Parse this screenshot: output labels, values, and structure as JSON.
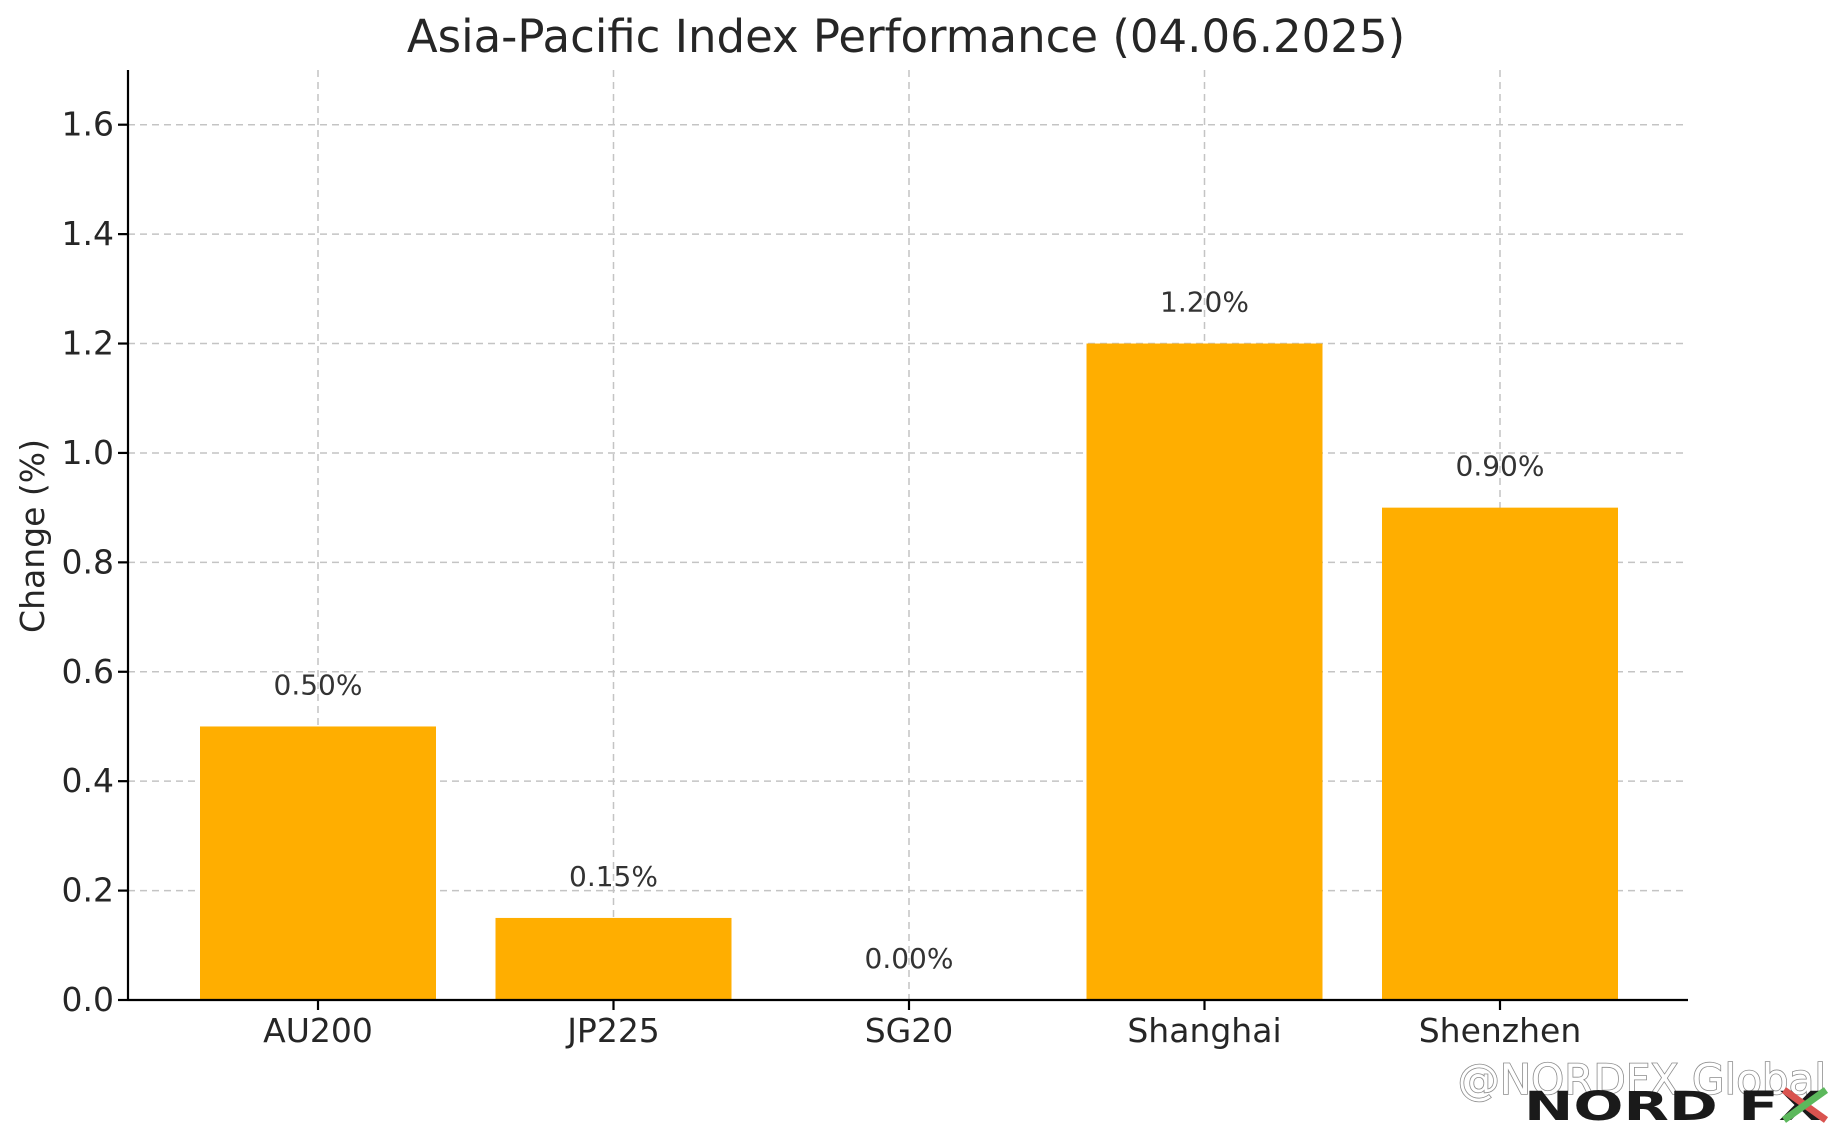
{
  "chart_data": {
    "type": "bar",
    "title": "Asia-Pacific Index Performance (04.06.2025)",
    "xlabel": "",
    "ylabel": "Change (%)",
    "categories": [
      "AU200",
      "JP225",
      "SG20",
      "Shanghai",
      "Shenzhen"
    ],
    "values": [
      0.5,
      0.15,
      0.0,
      1.2,
      0.9
    ],
    "data_labels": [
      "0.50%",
      "0.15%",
      "0.00%",
      "1.20%",
      "0.90%"
    ],
    "ylim": [
      0,
      1.7
    ],
    "yticks": [
      0.0,
      0.2,
      0.4,
      0.6,
      0.8,
      1.0,
      1.2,
      1.4,
      1.6
    ],
    "ytick_labels": [
      "0.0",
      "0.2",
      "0.4",
      "0.6",
      "0.8",
      "1.0",
      "1.2",
      "1.4",
      "1.6"
    ],
    "grid": true,
    "bar_color": "#FFAE00",
    "legend": "none"
  },
  "watermark": {
    "text": "@NORDFX Global",
    "logo_text": "NORD FX",
    "logo_accent_colors": [
      "#d9534f",
      "#5cb85c"
    ]
  }
}
